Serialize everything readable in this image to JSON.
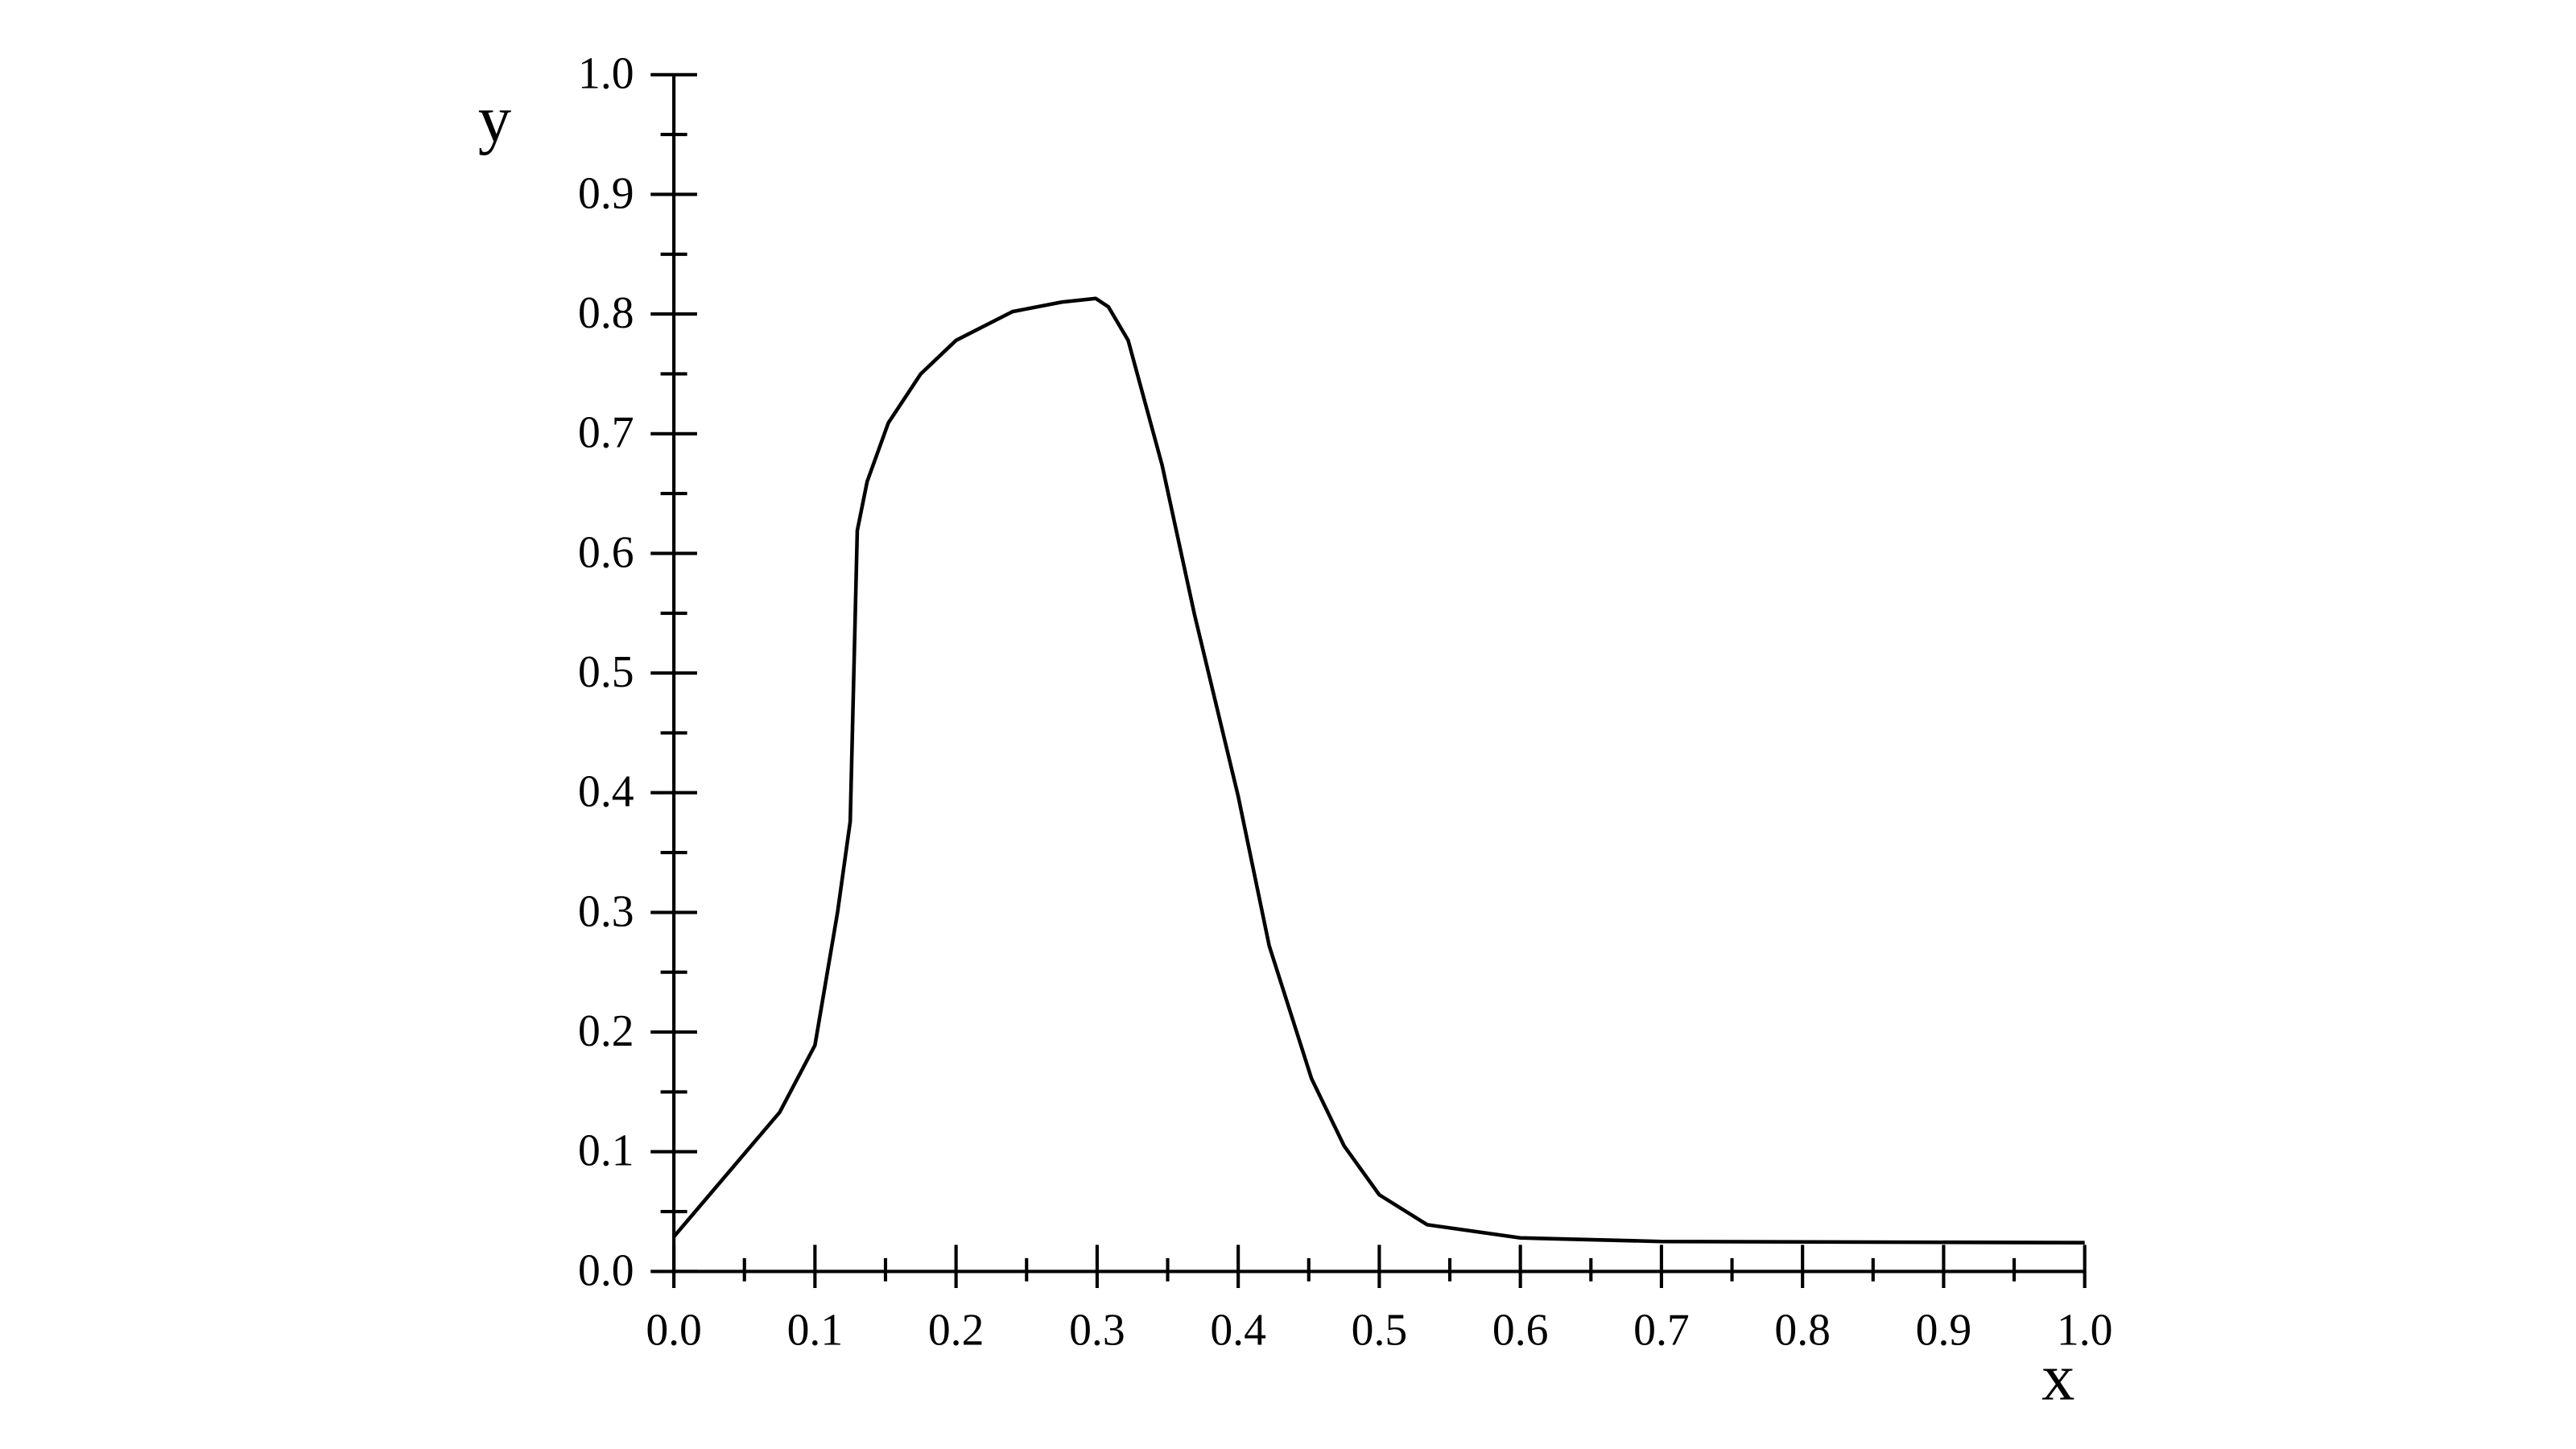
{
  "chart_data": {
    "type": "line",
    "x_label": "x",
    "y_label": "y",
    "x": [
      0,
      0.075,
      0.1,
      0.116,
      0.125,
      0.13,
      0.137,
      0.152,
      0.175,
      0.2,
      0.24,
      0.275,
      0.299,
      0.308,
      0.322,
      0.346,
      0.369,
      0.4,
      0.422,
      0.452,
      0.475,
      0.5,
      0.534,
      0.6,
      0.7,
      1.0
    ],
    "series": [
      {
        "color": "#000000",
        "values": [
          0.029,
          0.133,
          0.189,
          0.3,
          0.376,
          0.619,
          0.66,
          0.709,
          0.75,
          0.778,
          0.802,
          0.81,
          0.813,
          0.806,
          0.778,
          0.674,
          0.549,
          0.397,
          0.272,
          0.161,
          0.105,
          0.064,
          0.039,
          0.028,
          0.025,
          0.024
        ]
      }
    ],
    "xlim": [
      0,
      1
    ],
    "ylim": [
      0,
      1
    ],
    "xticks": [
      {
        "value": 0,
        "label": "0.0"
      },
      0.1,
      0.2,
      0.3,
      0.4,
      0.5,
      0.6,
      0.7,
      0.8,
      0.9,
      {
        "value": 1,
        "label": "1.0"
      }
    ],
    "yticks": [
      {
        "value": 0,
        "label": "0.0"
      },
      0.1,
      0.2,
      0.3,
      0.4,
      0.5,
      0.6,
      0.7,
      0.8,
      0.9,
      {
        "value": 1,
        "label": "1.0"
      }
    ],
    "xminor": [
      0.05,
      0.15,
      0.25,
      0.35,
      0.45,
      0.55,
      0.65,
      0.75,
      0.85,
      0.95
    ],
    "yminor": [
      0.05,
      0.15,
      0.25,
      0.35,
      0.45,
      0.55,
      0.65,
      0.75,
      0.85,
      0.95
    ],
    "grid": false
  }
}
